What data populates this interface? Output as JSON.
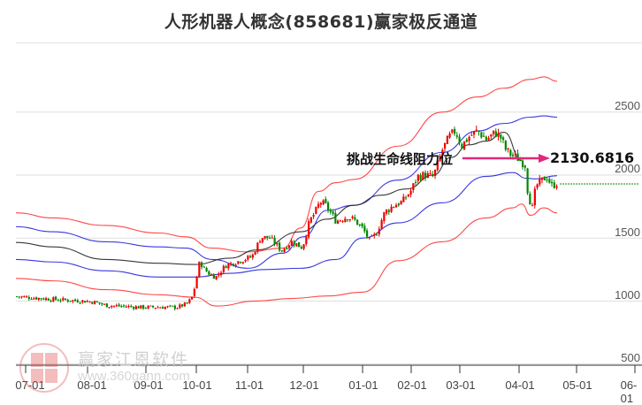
{
  "title": "人形机器人概念(858681)赢家极反通道",
  "watermark": {
    "brand": "赢家江恩软件",
    "url": "www.360gann.com",
    "stamp": [
      "江",
      "赢",
      "恩",
      "家"
    ]
  },
  "annotation": {
    "label": "挑战生命线阻力位",
    "level": "2130.6816",
    "arrow_color": "#e0287a"
  },
  "colors": {
    "up": "#ee0000",
    "down": "#008800",
    "outer_band": "#ff3333",
    "inner_band": "#2222dd",
    "mid_line": "#222222",
    "grid": "#dddddd",
    "dotted": "#008800"
  },
  "chart_data": {
    "type": "candlestick",
    "title": "人形机器人概念(858681)赢家极反通道",
    "xlabel": "",
    "ylabel": "",
    "ylim": [
      500,
      2800
    ],
    "y_ticks": [
      500,
      1000,
      1500,
      2000,
      2500
    ],
    "x_ticks": [
      "07-01",
      "08-01",
      "09-01",
      "10-01",
      "11-01",
      "12-01",
      "01-01",
      "02-01",
      "03-01",
      "04-01",
      "05-01",
      "06-01"
    ],
    "grid": true,
    "close_path": [
      [
        20,
        1035
      ],
      [
        40,
        1025
      ],
      [
        60,
        1014
      ],
      [
        80,
        1005
      ],
      [
        95,
        1000
      ],
      [
        108,
        990
      ],
      [
        120,
        965
      ],
      [
        140,
        958
      ],
      [
        160,
        950
      ],
      [
        180,
        952
      ],
      [
        200,
        950
      ],
      [
        212,
        980
      ],
      [
        218,
        1040
      ],
      [
        222,
        1176
      ],
      [
        226,
        1320
      ],
      [
        230,
        1260
      ],
      [
        236,
        1220
      ],
      [
        244,
        1190
      ],
      [
        255,
        1282
      ],
      [
        270,
        1317
      ],
      [
        285,
        1352
      ],
      [
        295,
        1507
      ],
      [
        305,
        1500
      ],
      [
        312,
        1450
      ],
      [
        318,
        1400
      ],
      [
        330,
        1472
      ],
      [
        342,
        1423
      ],
      [
        350,
        1634
      ],
      [
        356,
        1700
      ],
      [
        362,
        1789
      ],
      [
        368,
        1760
      ],
      [
        374,
        1700
      ],
      [
        380,
        1634
      ],
      [
        392,
        1669
      ],
      [
        400,
        1648
      ],
      [
        410,
        1577
      ],
      [
        418,
        1479
      ],
      [
        425,
        1528
      ],
      [
        435,
        1704
      ],
      [
        445,
        1760
      ],
      [
        455,
        1789
      ],
      [
        465,
        1880
      ],
      [
        472,
        1990
      ],
      [
        480,
        2000
      ],
      [
        490,
        1986
      ],
      [
        500,
        2197
      ],
      [
        508,
        2303
      ],
      [
        515,
        2352
      ],
      [
        522,
        2232
      ],
      [
        530,
        2303
      ],
      [
        540,
        2352
      ],
      [
        550,
        2282
      ],
      [
        560,
        2338
      ],
      [
        566,
        2300
      ],
      [
        572,
        2200
      ],
      [
        578,
        2160
      ],
      [
        584,
        2141
      ],
      [
        590,
        2106
      ],
      [
        594,
        2080
      ],
      [
        597,
        1845
      ],
      [
        602,
        1739
      ],
      [
        606,
        1915
      ],
      [
        612,
        1951
      ],
      [
        618,
        1990
      ],
      [
        624,
        1915
      ],
      [
        630,
        1937
      ]
    ],
    "series": [
      {
        "name": "upper_outer_band",
        "color": "#ff3333",
        "points": [
          [
            18,
            1700
          ],
          [
            60,
            1660
          ],
          [
            120,
            1600
          ],
          [
            180,
            1540
          ],
          [
            210,
            1510
          ],
          [
            240,
            1420
          ],
          [
            280,
            1390
          ],
          [
            320,
            1420
          ],
          [
            340,
            1580
          ],
          [
            360,
            1870
          ],
          [
            380,
            1940
          ],
          [
            400,
            1965
          ],
          [
            450,
            2230
          ],
          [
            500,
            2500
          ],
          [
            540,
            2620
          ],
          [
            570,
            2690
          ],
          [
            600,
            2760
          ],
          [
            615,
            2780
          ],
          [
            630,
            2745
          ]
        ]
      },
      {
        "name": "upper_inner_band",
        "color": "#2222dd",
        "points": [
          [
            18,
            1590
          ],
          [
            60,
            1550
          ],
          [
            120,
            1470
          ],
          [
            180,
            1430
          ],
          [
            210,
            1420
          ],
          [
            240,
            1330
          ],
          [
            280,
            1260
          ],
          [
            320,
            1380
          ],
          [
            343,
            1510
          ],
          [
            370,
            1720
          ],
          [
            400,
            1760
          ],
          [
            450,
            1960
          ],
          [
            500,
            2180
          ],
          [
            540,
            2350
          ],
          [
            570,
            2410
          ],
          [
            600,
            2460
          ],
          [
            615,
            2470
          ],
          [
            630,
            2460
          ]
        ]
      },
      {
        "name": "mid_line",
        "color": "#222222",
        "points": [
          [
            18,
            1465
          ],
          [
            60,
            1430
          ],
          [
            120,
            1330
          ],
          [
            180,
            1300
          ],
          [
            220,
            1290
          ],
          [
            260,
            1340
          ],
          [
            290,
            1405
          ],
          [
            340,
            1550
          ],
          [
            370,
            1650
          ],
          [
            400,
            1760
          ],
          [
            430,
            1840
          ],
          [
            460,
            1890
          ],
          [
            490,
            2000
          ],
          [
            510,
            2140
          ],
          [
            530,
            2240
          ],
          [
            550,
            2270
          ],
          [
            570,
            2340
          ],
          [
            590,
            2115
          ]
        ]
      },
      {
        "name": "lower_inner_band",
        "color": "#2222dd",
        "points": [
          [
            18,
            1330
          ],
          [
            60,
            1310
          ],
          [
            120,
            1240
          ],
          [
            180,
            1190
          ],
          [
            220,
            1190
          ],
          [
            260,
            1220
          ],
          [
            300,
            1250
          ],
          [
            340,
            1260
          ],
          [
            380,
            1330
          ],
          [
            410,
            1500
          ],
          [
            450,
            1620
          ],
          [
            500,
            1780
          ],
          [
            550,
            1990
          ],
          [
            580,
            2020
          ],
          [
            595,
            1975
          ],
          [
            605,
            1970
          ],
          [
            630,
            1995
          ]
        ]
      },
      {
        "name": "lower_outer_band",
        "color": "#ff3333",
        "points": [
          [
            18,
            1180
          ],
          [
            60,
            1160
          ],
          [
            120,
            1090
          ],
          [
            180,
            1050
          ],
          [
            220,
            1030
          ],
          [
            245,
            960
          ],
          [
            290,
            1000
          ],
          [
            330,
            1020
          ],
          [
            370,
            1040
          ],
          [
            410,
            1070
          ],
          [
            450,
            1320
          ],
          [
            500,
            1470
          ],
          [
            550,
            1660
          ],
          [
            580,
            1740
          ],
          [
            590,
            1770
          ],
          [
            600,
            1680
          ],
          [
            615,
            1740
          ],
          [
            630,
            1700
          ]
        ]
      }
    ],
    "annotations": [
      {
        "text": "挑战生命线阻力位",
        "value": 2130.6816,
        "type": "arrow"
      }
    ],
    "reference_line": {
      "value": 1937,
      "style": "dotted",
      "color": "#008800"
    }
  },
  "axis": {
    "y_labels": [
      "2500",
      "2000",
      "1500",
      "1000",
      "500"
    ],
    "x_labels": [
      "07-01",
      "08-01",
      "09-01",
      "10-01",
      "11-01",
      "12-01",
      "01-01",
      "02-01",
      "03-01",
      "04-01",
      "05-01",
      "06-01"
    ]
  }
}
